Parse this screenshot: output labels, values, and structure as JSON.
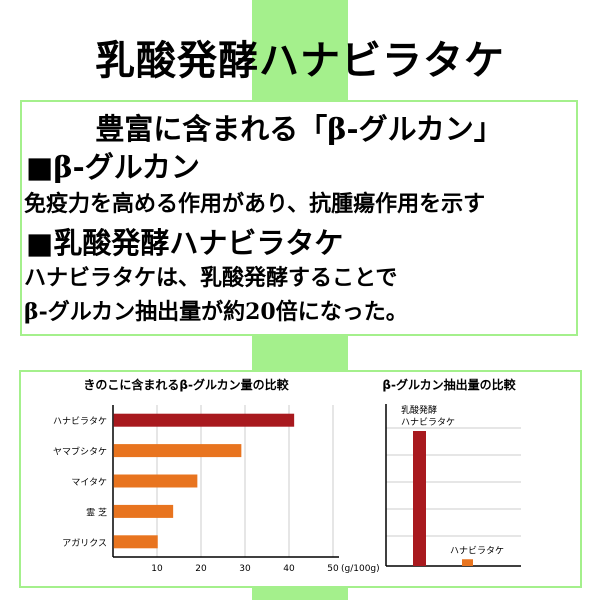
{
  "title": "乳酸発酵ハナビラタケ",
  "info": {
    "heading": "豊富に含まれる「β-グルカン」",
    "section1_title": "■β-グルカン",
    "section1_text": "免疫力を高める作用があり、抗腫瘍作用を示す",
    "section2_title": "■乳酸発酵ハナビラタケ",
    "section2_text_line1": "ハナビラタケは、乳酸発酵することで",
    "section2_text_line2": "β-グルカン抽出量が約20倍になった。"
  },
  "colors": {
    "accent_green": "#a4f08c",
    "bar_highlight": "#a8191e",
    "bar_orange": "#e8741f"
  },
  "chart_data": [
    {
      "type": "bar",
      "orientation": "horizontal",
      "title": "きのこに含まれるβ-グルカン量の比較",
      "categories": [
        "ハナビラタケ",
        "ヤマブシタケ",
        "マイタケ",
        "霊 芝",
        "アガリクス"
      ],
      "values": [
        41,
        29,
        19,
        13.5,
        10
      ],
      "xlabel": "",
      "unit": "(g/100g)",
      "xlim": [
        0,
        50
      ],
      "ticks": [
        10,
        20,
        30,
        40,
        50
      ],
      "grid": true
    },
    {
      "type": "bar",
      "orientation": "vertical",
      "title": "β-グルカン抽出量の比較",
      "categories": [
        "乳酸発酵\nハナビラタケ",
        "ハナビラタケ"
      ],
      "values": [
        20,
        1
      ],
      "ylim": [
        0,
        24
      ],
      "grid": true
    }
  ]
}
